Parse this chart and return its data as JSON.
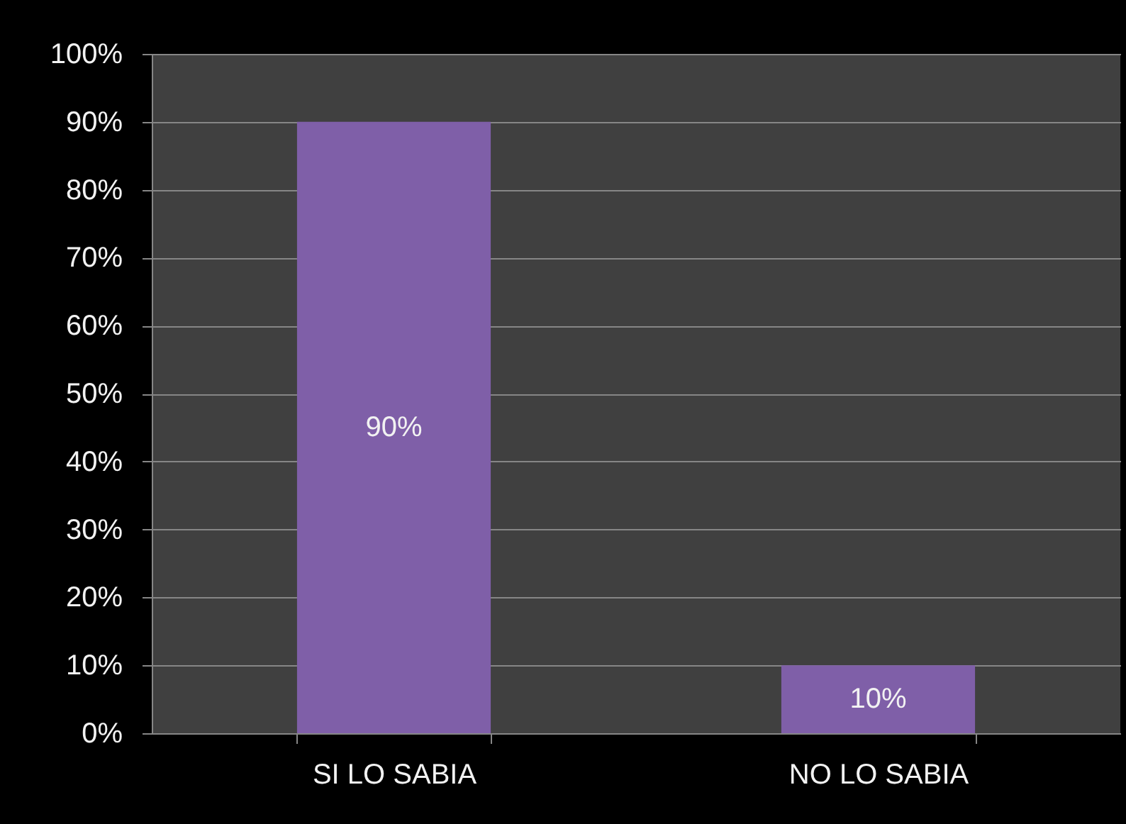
{
  "chart_data": {
    "type": "bar",
    "categories": [
      "SI LO SABIA",
      "NO LO SABIA"
    ],
    "values": [
      90,
      10
    ],
    "color": "#7f5fa8",
    "value_labels": [
      "90%",
      "10%"
    ],
    "ylim": [
      0,
      100
    ],
    "yticks": [
      {
        "value": 0,
        "label": "0%"
      },
      {
        "value": 10,
        "label": "10%"
      },
      {
        "value": 20,
        "label": "20%"
      },
      {
        "value": 30,
        "label": "30%"
      },
      {
        "value": 40,
        "label": "40%"
      },
      {
        "value": 50,
        "label": "50%"
      },
      {
        "value": 60,
        "label": "60%"
      },
      {
        "value": 70,
        "label": "70%"
      },
      {
        "value": 80,
        "label": "80%"
      },
      {
        "value": 90,
        "label": "90%"
      },
      {
        "value": 100,
        "label": "100%"
      }
    ],
    "grid": "y"
  }
}
